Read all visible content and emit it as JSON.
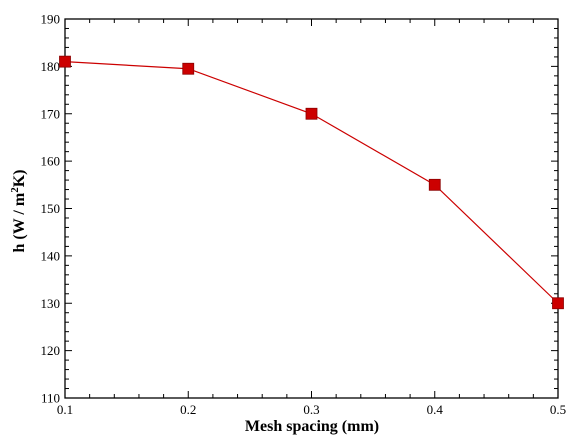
{
  "chart_data": {
    "type": "line",
    "title": "",
    "xlabel": "Mesh spacing (mm)",
    "ylabel": {
      "before_sup": "h (W / m",
      "sup": "2",
      "after_sup": "K)"
    },
    "xlim": [
      0.1,
      0.5
    ],
    "ylim": [
      110,
      190
    ],
    "xticks": [
      0.1,
      0.2,
      0.3,
      0.4,
      0.5
    ],
    "xtick_labels": [
      "0.1",
      "0.2",
      "0.3",
      "0.4",
      "0.5"
    ],
    "yticks": [
      110,
      120,
      130,
      140,
      150,
      160,
      170,
      180,
      190
    ],
    "ytick_labels": [
      "110",
      "120",
      "130",
      "140",
      "150",
      "160",
      "170",
      "180",
      "190"
    ],
    "grid": false,
    "series": [
      {
        "x": [
          0.1,
          0.2,
          0.3,
          0.4,
          0.5
        ],
        "y": [
          181,
          179.5,
          170,
          155,
          130
        ],
        "color": "#cc0000",
        "marker": "square"
      }
    ]
  }
}
